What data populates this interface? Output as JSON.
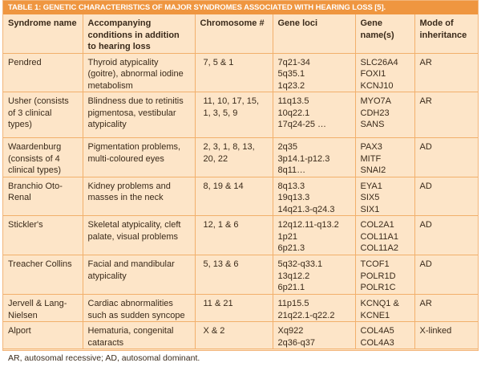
{
  "title": "TABLE 1: GENETIC CHARACTERISTICS OF MAJOR SYNDROMES ASSOCIATED WITH HEARING LOSS [5].",
  "headers": [
    "Syndrome name",
    "Accompanying conditions in addition to hearing loss",
    "Chromosome #",
    "Gene loci",
    "Gene name(s)",
    "Mode of inheritance"
  ],
  "rows": [
    {
      "syndrome": "Pendred",
      "conditions": "Thyroid atypicality (goitre), abnormal iodine metabolism",
      "chromosome": "7, 5 & 1",
      "loci": [
        "7q21-34",
        "5q35.1",
        "1q23.2"
      ],
      "genes": [
        "SLC26A4",
        "FOXI1",
        "KCNJ10"
      ],
      "mode": "AR"
    },
    {
      "syndrome": "Usher (consists of 3 clinical types)",
      "conditions": "Blindness due to retinitis pigmentosa, vestibular atypicality",
      "chromosome": "11, 10, 17, 15, 1, 3, 5, 9",
      "loci": [
        "11q13.5",
        "10q22.1",
        "17q24-25 …"
      ],
      "genes": [
        "MYO7A",
        "CDH23",
        "SANS"
      ],
      "mode": "AR"
    },
    {
      "syndrome": "Waardenburg (consists of 4 clinical types)",
      "conditions": "Pigmentation problems, multi-coloured eyes",
      "chromosome": "2, 3, 1, 8, 13, 20, 22",
      "loci": [
        "2q35",
        "3p14.1-p12.3",
        "8q11…"
      ],
      "genes": [
        "PAX3",
        "MITF",
        "SNAI2"
      ],
      "mode": "AD"
    },
    {
      "syndrome": "Branchio Oto-Renal",
      "conditions": "Kidney problems and masses in the neck",
      "chromosome": "8, 19 & 14",
      "loci": [
        "8q13.3",
        "19q13.3",
        "14q21.3-q24.3"
      ],
      "genes": [
        "EYA1",
        "SIX5",
        "SIX1"
      ],
      "mode": "AD"
    },
    {
      "syndrome": "Stickler's",
      "conditions": "Skeletal atypicality, cleft palate, visual problems",
      "chromosome": "12, 1 & 6",
      "loci": [
        "12q12.11-q13.2",
        "1p21",
        "6p21.3"
      ],
      "genes": [
        "COL2A1",
        "COL11A1",
        "COL11A2"
      ],
      "mode": "AD"
    },
    {
      "syndrome": "Treacher Collins",
      "conditions": "Facial and mandibular atypicality",
      "chromosome": "5, 13 & 6",
      "loci": [
        "5q32-q33.1",
        "13q12.2",
        "6p21.1"
      ],
      "genes": [
        "TCOF1",
        "POLR1D",
        "POLR1C"
      ],
      "mode": "AD"
    },
    {
      "syndrome": "Jervell & Lang-Nielsen",
      "conditions": "Cardiac abnormalities such as sudden syncope",
      "chromosome": "11 & 21",
      "loci": [
        "11p15.5",
        "21q22.1-q22.2"
      ],
      "genes": [
        "KCNQ1 &",
        "KCNE1"
      ],
      "mode": "AR"
    },
    {
      "syndrome": "Alport",
      "conditions": "Hematuria, congenital cataracts",
      "chromosome": "X & 2",
      "loci": [
        "Xq922",
        "2q36-q37"
      ],
      "genes": [
        "COL4A5",
        "COL4A3"
      ],
      "mode": "X-linked"
    }
  ],
  "footnote": "AR, autosomal recessive; AD, autosomal dominant.",
  "colors": {
    "title_bar": "#ef9640",
    "background": "#fde5c8",
    "rule": "#f2b06c"
  }
}
